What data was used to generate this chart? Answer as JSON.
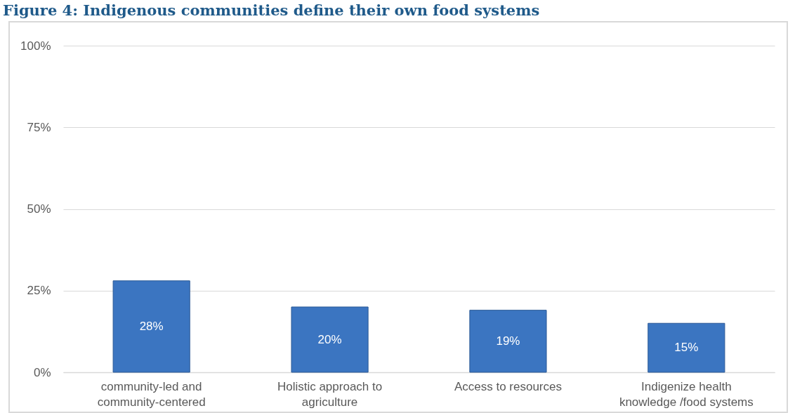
{
  "chart_data": {
    "type": "bar",
    "title": "Figure 4: Indigenous communities define their own food systems",
    "categories": [
      "community-led and community-centered",
      "Holistic approach to agriculture",
      "Access to resources",
      "Indigenize health knowledge /food systems"
    ],
    "values": [
      28,
      20,
      19,
      15
    ],
    "value_labels": [
      "28%",
      "20%",
      "19%",
      "15%"
    ],
    "color": "#3b75c1",
    "ylim": [
      0,
      100
    ],
    "yticks": [
      {
        "value": 0,
        "label": "0%"
      },
      {
        "value": 25,
        "label": "25%"
      },
      {
        "value": 50,
        "label": "50%"
      },
      {
        "value": 75,
        "label": "75%"
      },
      {
        "value": 100,
        "label": "100%"
      }
    ],
    "grid": "y"
  }
}
